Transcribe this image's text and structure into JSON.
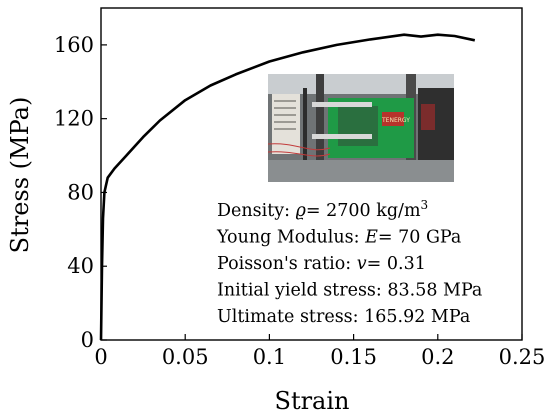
{
  "chart_data": {
    "type": "line",
    "xlabel": "Strain",
    "ylabel": "Stress (MPa)",
    "xlim": [
      0,
      0.25
    ],
    "ylim": [
      0,
      180
    ],
    "xticks": [
      0,
      0.05,
      0.1,
      0.15,
      0.2,
      0.25
    ],
    "xtick_labels": [
      "0",
      "0.05",
      "0.1",
      "0.15",
      "0.2",
      "0.25"
    ],
    "yticks": [
      0,
      40,
      80,
      120,
      160
    ],
    "ytick_labels": [
      "0",
      "40",
      "80",
      "120",
      "160"
    ],
    "grid": false,
    "series": [
      {
        "color": "#000000",
        "x": [
          0,
          0.0006,
          0.0012,
          0.002,
          0.004,
          0.008,
          0.015,
          0.025,
          0.035,
          0.05,
          0.065,
          0.08,
          0.1,
          0.12,
          0.14,
          0.16,
          0.18,
          0.19,
          0.2,
          0.21,
          0.222
        ],
        "y": [
          0,
          40,
          66,
          80,
          88,
          93,
          100,
          110,
          119,
          130,
          138,
          144,
          151,
          156,
          160,
          163,
          165.5,
          164.5,
          165.5,
          164.8,
          162.5
        ]
      }
    ],
    "annotations": [
      {
        "prefix": "Density:  ",
        "symbol": "ϱ",
        "suffix": "= 2700 kg/m",
        "sup": "3"
      },
      {
        "prefix": "Young Modulus: ",
        "symbol": "E",
        "suffix": "= 70 GPa",
        "sup": ""
      },
      {
        "prefix": "Poisson's ratio: ",
        "symbol": "v",
        "suffix": "= 0.31",
        "sup": ""
      },
      {
        "prefix": "Initial yield stress: 83.58 MPa",
        "symbol": "",
        "suffix": "",
        "sup": ""
      },
      {
        "prefix": "Ultimate stress: 165.92 MPa",
        "symbol": "",
        "suffix": "",
        "sup": ""
      }
    ]
  },
  "inset_photo": {
    "device_label": "TENERGY"
  }
}
